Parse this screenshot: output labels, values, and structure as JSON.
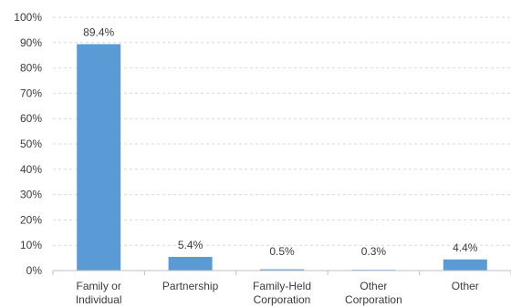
{
  "chart_data": {
    "type": "bar",
    "title": "",
    "xlabel": "",
    "ylabel": "",
    "categories": [
      [
        "Family or",
        "Individual"
      ],
      [
        "Partnership"
      ],
      [
        "Family-Held",
        "Corporation"
      ],
      [
        "Other",
        "Corporation"
      ],
      [
        "Other"
      ]
    ],
    "values": [
      89.4,
      5.4,
      0.5,
      0.3,
      4.4
    ],
    "data_labels": [
      "89.4%",
      "5.4%",
      "0.5%",
      "0.3%",
      "4.4%"
    ],
    "y_ticks": [
      "0%",
      "10%",
      "20%",
      "30%",
      "40%",
      "50%",
      "60%",
      "70%",
      "80%",
      "90%",
      "100%"
    ],
    "ylim": [
      0,
      100
    ],
    "grid": "horizontal dashed",
    "legend": "none",
    "colors": {
      "bar": "#5b9bd5",
      "grid": "#d9d9d9",
      "axis": "#bfbfbf",
      "text": "#3b3b3b"
    }
  }
}
